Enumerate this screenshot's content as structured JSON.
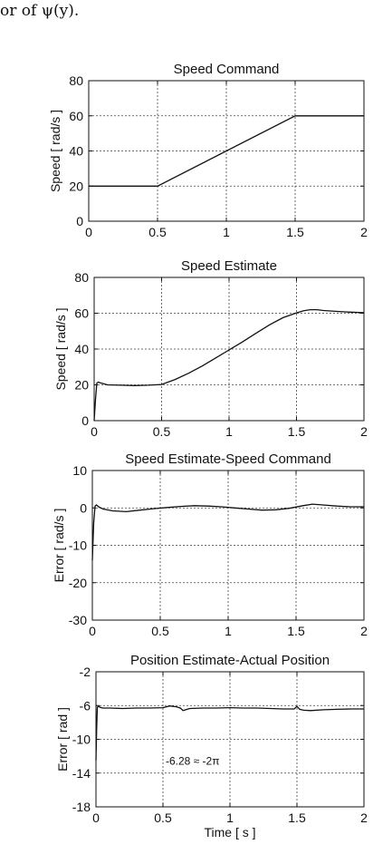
{
  "caption": "or of ψ(y).",
  "chart_data": [
    {
      "type": "line",
      "title": "Speed Command",
      "xlabel": "",
      "ylabel": "Speed [ rad/s ]",
      "xlim": [
        0,
        2
      ],
      "ylim": [
        0,
        80
      ],
      "xticks": [
        0,
        0.5,
        1,
        1.5,
        2
      ],
      "yticks": [
        0,
        20,
        40,
        60,
        80
      ],
      "xtick_labels": [
        "0",
        "0.5",
        "1",
        "1.5",
        "2"
      ],
      "ytick_labels": [
        "0",
        "20",
        "40",
        "60",
        "80"
      ],
      "grid": true,
      "series": [
        {
          "x": [
            0,
            0.5,
            1.5,
            2
          ],
          "y": [
            20,
            20,
            60,
            60
          ]
        }
      ]
    },
    {
      "type": "line",
      "title": "Speed Estimate",
      "xlabel": "",
      "ylabel": "Speed [ rad/s ]",
      "xlim": [
        0,
        2
      ],
      "ylim": [
        0,
        80
      ],
      "xticks": [
        0,
        0.5,
        1,
        1.5,
        2
      ],
      "yticks": [
        0,
        20,
        40,
        60,
        80
      ],
      "xtick_labels": [
        "0",
        "0.5",
        "1",
        "1.5",
        "2"
      ],
      "ytick_labels": [
        "0",
        "20",
        "40",
        "60",
        "80"
      ],
      "grid": true,
      "series": [
        {
          "x": [
            0,
            0.01,
            0.02,
            0.03,
            0.05,
            0.1,
            0.2,
            0.3,
            0.4,
            0.5,
            0.6,
            0.7,
            0.8,
            0.9,
            1.0,
            1.1,
            1.2,
            1.3,
            1.4,
            1.5,
            1.55,
            1.6,
            1.65,
            1.7,
            1.8,
            1.9,
            2.0
          ],
          "y": [
            0,
            12,
            21,
            21.5,
            21,
            20,
            19.8,
            19.6,
            19.8,
            20.2,
            23,
            26.5,
            30.5,
            35,
            39.5,
            44,
            48.8,
            53.5,
            57.5,
            60.2,
            61.3,
            62,
            62,
            61.5,
            61,
            60.6,
            60.3
          ]
        }
      ]
    },
    {
      "type": "line",
      "title": "Speed Estimate-Speed Command",
      "xlabel": "",
      "ylabel": "Error [ rad/s ]",
      "xlim": [
        0,
        2
      ],
      "ylim": [
        -30,
        10
      ],
      "xticks": [
        0,
        0.5,
        1,
        1.5,
        2
      ],
      "yticks": [
        -30,
        -20,
        -10,
        0,
        10
      ],
      "xtick_labels": [
        "0",
        "0.5",
        "1",
        "1.5",
        "2"
      ],
      "ytick_labels": [
        "-30",
        "-20",
        "-10",
        "0",
        "10"
      ],
      "grid": true,
      "series": [
        {
          "x": [
            0,
            0.01,
            0.02,
            0.03,
            0.05,
            0.08,
            0.15,
            0.25,
            0.35,
            0.45,
            0.55,
            0.65,
            0.75,
            0.85,
            0.95,
            1.05,
            1.15,
            1.25,
            1.35,
            1.45,
            1.55,
            1.62,
            1.7,
            1.8,
            1.9,
            2.0
          ],
          "y": [
            -14,
            -4,
            0.5,
            0.8,
            0.2,
            -0.3,
            -0.8,
            -1.0,
            -0.6,
            -0.2,
            0.1,
            0.4,
            0.6,
            0.5,
            0.3,
            0.0,
            -0.3,
            -0.6,
            -0.5,
            -0.1,
            0.6,
            1.0,
            0.8,
            0.5,
            0.3,
            0.3
          ]
        }
      ]
    },
    {
      "type": "line",
      "title": "Position Estimate-Actual Position",
      "xlabel": "Time [ s ]",
      "ylabel": "Error [ rad ]",
      "xlim": [
        0,
        2
      ],
      "ylim": [
        -18,
        -2
      ],
      "xticks": [
        0,
        0.5,
        1,
        1.5,
        2
      ],
      "yticks": [
        -18,
        -14,
        -10,
        -6,
        -2
      ],
      "xtick_labels": [
        "0",
        "0.5",
        "1",
        "1.5",
        "2"
      ],
      "ytick_labels": [
        "-18",
        "-14",
        "-10",
        "-6",
        "-2"
      ],
      "grid": true,
      "annotation": "-6.28 ≈ -2π",
      "series": [
        {
          "x": [
            0,
            0.005,
            0.01,
            0.02,
            0.03,
            0.05,
            0.1,
            0.2,
            0.3,
            0.4,
            0.5,
            0.55,
            0.6,
            0.63,
            0.65,
            0.7,
            0.8,
            0.9,
            1.0,
            1.1,
            1.2,
            1.3,
            1.4,
            1.48,
            1.5,
            1.52,
            1.55,
            1.6,
            1.7,
            1.8,
            1.9,
            2.0
          ],
          "y": [
            -12.5,
            -9,
            -6.2,
            -6.1,
            -6.2,
            -6.3,
            -6.3,
            -6.35,
            -6.3,
            -6.3,
            -6.25,
            -6.05,
            -6.15,
            -6.3,
            -6.6,
            -6.35,
            -6.3,
            -6.3,
            -6.25,
            -6.3,
            -6.3,
            -6.35,
            -6.4,
            -6.4,
            -6.1,
            -6.45,
            -6.55,
            -6.6,
            -6.5,
            -6.45,
            -6.4,
            -6.4
          ]
        }
      ]
    }
  ]
}
